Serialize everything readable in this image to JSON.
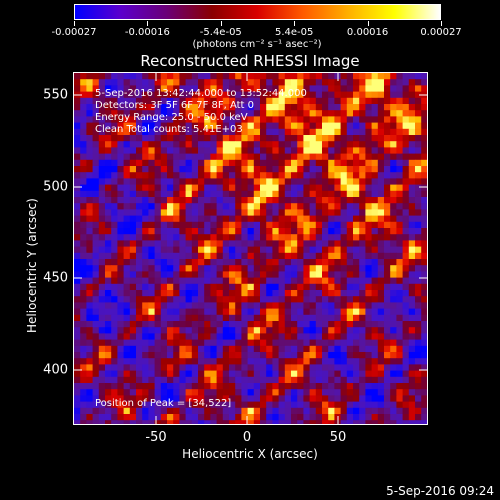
{
  "colorbar": {
    "tick_labels": [
      "-0.00027",
      "-0.00016",
      "-5.4e-05",
      "5.4e-05",
      "0.00016",
      "0.00027"
    ],
    "units": "(photons cm⁻² s⁻¹ asec⁻²)",
    "colors": [
      "#0000ff",
      "#5b00cc",
      "#6a0078",
      "#8a0000",
      "#d80000",
      "#ff5a00",
      "#ffb000",
      "#ffff00",
      "#ffffff"
    ]
  },
  "title": "Reconstructed RHESSI Image",
  "info_lines": [
    "5-Sep-2016 13:42:44.000 to 13:52:44.000",
    "Detectors: 3F 5F 6F 7F 8F, Att 0",
    "Energy Range: 25.0 - 50.0 keV",
    "Clean     Total counts: 5.41E+03"
  ],
  "peak_label": "Position of Peak = [34,522]",
  "axes": {
    "x_label": "Heliocentric X (arcsec)",
    "y_label": "Heliocentric Y (arcsec)",
    "x_ticks": [
      "-50",
      "0",
      "50"
    ],
    "y_ticks": [
      "400",
      "450",
      "500",
      "550"
    ],
    "x_range": [
      -95,
      95
    ],
    "y_range": [
      370,
      563
    ]
  },
  "footer_timestamp": "5-Sep-2016 09:24"
}
